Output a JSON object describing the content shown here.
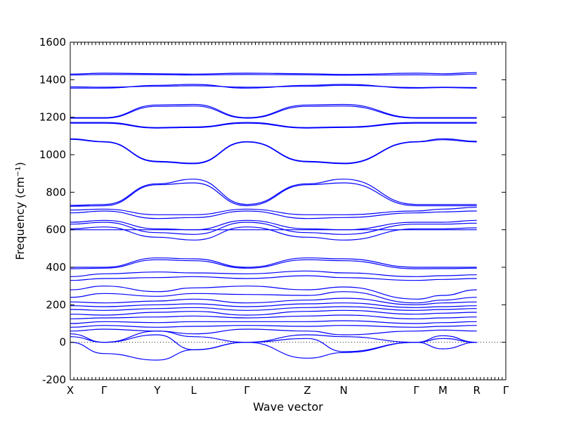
{
  "chart_data": {
    "type": "line",
    "title": "",
    "xlabel": "Wave vector",
    "ylabel": "Frequency (cm⁻¹)",
    "ylim": [
      -200,
      1600
    ],
    "yticks": [
      -200,
      0,
      200,
      400,
      600,
      800,
      1000,
      1200,
      1400,
      1600
    ],
    "xlim": [
      0,
      18
    ],
    "high_symmetry_points": [
      {
        "label": "X",
        "x": 0
      },
      {
        "label": "Γ",
        "x": 1.4
      },
      {
        "label": "Y",
        "x": 3.6
      },
      {
        "label": "L",
        "x": 5.1
      },
      {
        "label": "Γ",
        "x": 7.3
      },
      {
        "label": "Z",
        "x": 9.8
      },
      {
        "label": "N",
        "x": 11.3
      },
      {
        "label": "Γ",
        "x": 14.3
      },
      {
        "label": "M",
        "x": 15.4
      },
      {
        "label": "R",
        "x": 16.8
      },
      {
        "label": "Γ",
        "x": 18
      }
    ],
    "zero_reference_line": 0,
    "grid": false,
    "line_color": "#0000ff",
    "series": [
      {
        "values": [
          1430,
          1435,
          1432,
          1430,
          1435,
          1432,
          1428,
          1435,
          1432,
          1438
        ]
      },
      {
        "values": [
          1425,
          1428,
          1427,
          1425,
          1428,
          1426,
          1424,
          1426,
          1425,
          1430
        ]
      },
      {
        "values": [
          1362,
          1360,
          1365,
          1368,
          1360,
          1365,
          1370,
          1358,
          1360,
          1358
        ]
      },
      {
        "values": [
          1355,
          1355,
          1370,
          1375,
          1355,
          1370,
          1375,
          1355,
          1358,
          1355
        ]
      },
      {
        "values": [
          1198,
          1198,
          1265,
          1268,
          1198,
          1265,
          1268,
          1198,
          1198,
          1198
        ]
      },
      {
        "values": [
          1195,
          1195,
          1258,
          1260,
          1195,
          1258,
          1260,
          1195,
          1195,
          1195
        ]
      },
      {
        "values": [
          1172,
          1172,
          1145,
          1148,
          1172,
          1145,
          1148,
          1172,
          1172,
          1172
        ]
      },
      {
        "values": [
          1168,
          1168,
          1142,
          1145,
          1168,
          1142,
          1145,
          1168,
          1168,
          1168
        ]
      },
      {
        "values": [
          1085,
          1070,
          965,
          955,
          1070,
          965,
          955,
          1070,
          1085,
          1072
        ]
      },
      {
        "values": [
          1082,
          1068,
          962,
          952,
          1068,
          962,
          952,
          1068,
          1080,
          1068
        ]
      },
      {
        "values": [
          730,
          735,
          845,
          870,
          735,
          845,
          870,
          735,
          735,
          735
        ]
      },
      {
        "values": [
          725,
          728,
          840,
          850,
          728,
          840,
          850,
          728,
          728,
          728
        ]
      },
      {
        "values": [
          705,
          710,
          680,
          680,
          710,
          680,
          680,
          700,
          710,
          720
        ]
      },
      {
        "values": [
          690,
          700,
          660,
          665,
          700,
          660,
          665,
          690,
          695,
          700
        ]
      },
      {
        "values": [
          640,
          650,
          605,
          600,
          650,
          605,
          600,
          640,
          640,
          650
        ]
      },
      {
        "values": [
          630,
          640,
          585,
          575,
          640,
          585,
          575,
          630,
          630,
          635
        ]
      },
      {
        "values": [
          605,
          615,
          560,
          545,
          615,
          560,
          545,
          605,
          605,
          610
        ]
      },
      {
        "values": [
          600,
          600,
          600,
          600,
          600,
          600,
          600,
          600,
          600,
          600
        ]
      },
      {
        "values": [
          400,
          400,
          450,
          445,
          400,
          450,
          445,
          400,
          400,
          400
        ]
      },
      {
        "values": [
          392,
          395,
          440,
          435,
          395,
          440,
          435,
          392,
          393,
          395
        ]
      },
      {
        "values": [
          350,
          365,
          375,
          370,
          365,
          380,
          370,
          350,
          355,
          360
        ]
      },
      {
        "values": [
          330,
          340,
          345,
          350,
          340,
          355,
          345,
          330,
          335,
          340
        ]
      },
      {
        "values": [
          280,
          300,
          270,
          290,
          300,
          280,
          295,
          230,
          250,
          280
        ]
      },
      {
        "values": [
          240,
          260,
          245,
          260,
          255,
          250,
          270,
          210,
          225,
          240
        ]
      },
      {
        "values": [
          215,
          210,
          220,
          230,
          210,
          225,
          235,
          200,
          210,
          215
        ]
      },
      {
        "values": [
          195,
          190,
          200,
          205,
          190,
          205,
          210,
          185,
          190,
          195
        ]
      },
      {
        "values": [
          175,
          170,
          180,
          185,
          170,
          185,
          190,
          170,
          175,
          180
        ]
      },
      {
        "values": [
          150,
          145,
          160,
          165,
          145,
          165,
          170,
          150,
          155,
          160
        ]
      },
      {
        "values": [
          125,
          130,
          135,
          140,
          130,
          140,
          145,
          125,
          130,
          135
        ]
      },
      {
        "values": [
          100,
          110,
          105,
          110,
          110,
          110,
          115,
          100,
          105,
          110
        ]
      },
      {
        "values": [
          80,
          90,
          80,
          85,
          90,
          85,
          90,
          80,
          85,
          90
        ]
      },
      {
        "values": [
          60,
          70,
          60,
          45,
          70,
          60,
          40,
          60,
          65,
          60
        ]
      },
      {
        "values": [
          45,
          0,
          60,
          30,
          0,
          40,
          30,
          0,
          35,
          0
        ]
      },
      {
        "values": [
          30,
          0,
          40,
          -40,
          0,
          20,
          -50,
          0,
          20,
          0
        ]
      },
      {
        "values": [
          0,
          -60,
          -95,
          -40,
          0,
          -85,
          -55,
          0,
          -35,
          0
        ]
      }
    ]
  }
}
